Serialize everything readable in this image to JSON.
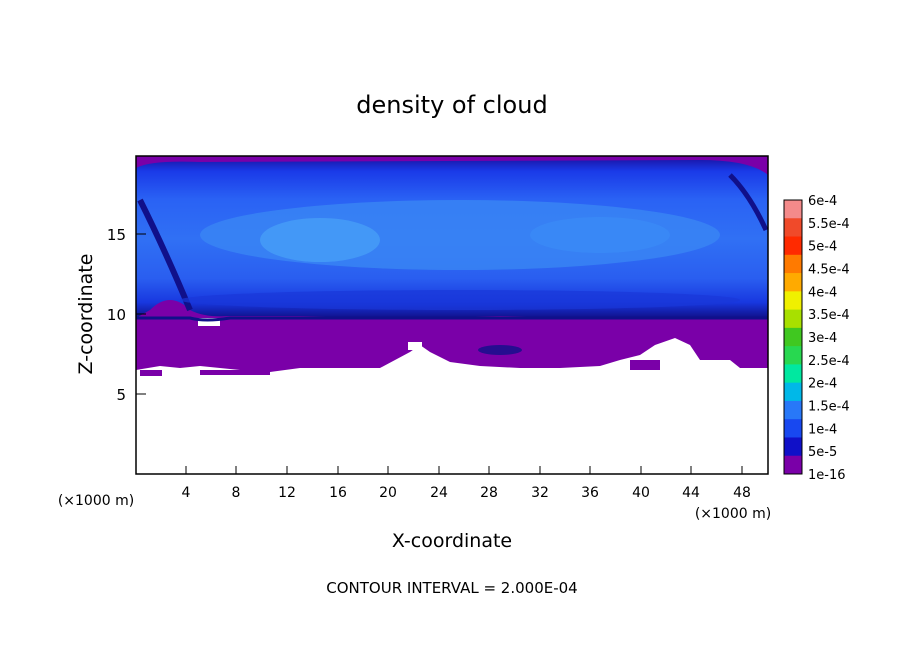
{
  "chart_data": {
    "type": "heatmap",
    "title": "density of cloud",
    "xlabel": "X-coordinate",
    "ylabel": "Z-coordinate",
    "x_unit_left": "(×1000 m)",
    "x_unit_right": "(×1000 m)",
    "xlim": [
      0,
      50
    ],
    "ylim": [
      0,
      20
    ],
    "x_ticks": [
      4,
      8,
      12,
      16,
      20,
      24,
      28,
      32,
      36,
      40,
      44,
      48
    ],
    "x_tick_labels": [
      "4",
      "8",
      "12",
      "16",
      "20",
      "24",
      "28",
      "32",
      "36",
      "40",
      "44",
      "48"
    ],
    "y_ticks": [
      5,
      10,
      15
    ],
    "y_tick_labels": [
      "5",
      "10",
      "15"
    ],
    "footer": "CONTOUR INTERVAL = 2.000E-04",
    "colorbar": {
      "labels": [
        "6e-4",
        "5.5e-4",
        "5e-4",
        "4.5e-4",
        "4e-4",
        "3.5e-4",
        "3e-4",
        "2.5e-4",
        "2e-4",
        "1.5e-4",
        "1e-4",
        "5e-5",
        "1e-16"
      ],
      "colors": [
        "#f48a8a",
        "#f04a2a",
        "#ff2a00",
        "#ff7a00",
        "#ffaa00",
        "#f0f000",
        "#a8e000",
        "#40c820",
        "#28d850",
        "#00e8a0",
        "#00b8e8",
        "#2878f8",
        "#1848f0",
        "#1010c8",
        "#7a00a8"
      ]
    },
    "regions": {
      "clear_below_z": 6.5,
      "thin_cloud_z_range": [
        6.5,
        9.8
      ],
      "dense_cloud_z_range": [
        9.8,
        19.5
      ]
    }
  }
}
